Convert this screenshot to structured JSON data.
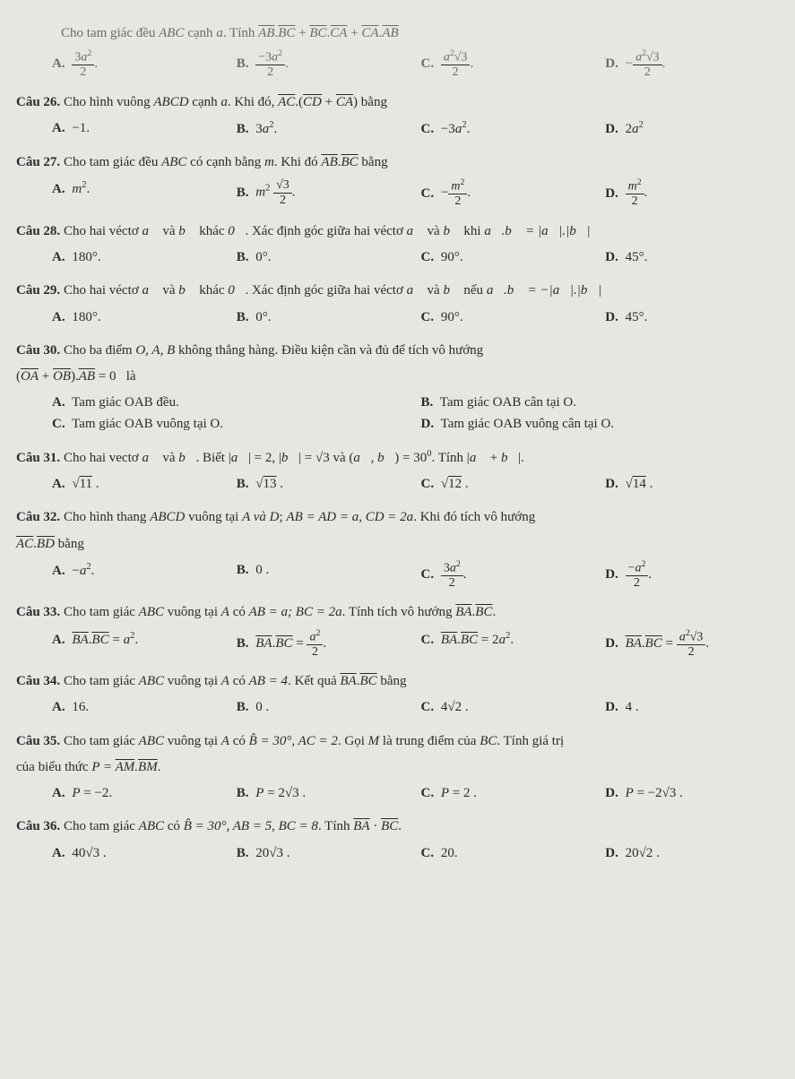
{
  "doc": {
    "background": "#e8e6e2",
    "text_color": "#2a2a2a",
    "font_family": "Times New Roman",
    "base_fontsize_pt": 15
  },
  "q25": {
    "stem_prefix": "Cho tam giác đều ",
    "shape": "ABC",
    "stem_mid": " cạnh ",
    "var": "a",
    "stem_end": ". Tính ",
    "expr": "AB·BC + BC·CA + CA·AB",
    "optA": "3a² / 2",
    "optB": "−3a² / 2",
    "optC": "a²√3 / 2",
    "optD": "− a²√3 / 2"
  },
  "q26": {
    "label": "Câu 26.",
    "stem_a": "Cho hình vuông ",
    "shape": "ABCD",
    "stem_b": " cạnh ",
    "var": "a",
    "stem_c": ". Khi đó, ",
    "expr": "AC·(CD + CA)",
    "stem_d": " bằng",
    "optA": "−1.",
    "optB": "3a².",
    "optC": "−3a².",
    "optD": "2a²"
  },
  "q27": {
    "label": "Câu 27.",
    "stem_a": "Cho tam giác đều ",
    "shape": "ABC",
    "stem_b": " có cạnh bằng ",
    "var": "m",
    "stem_c": ". Khi đó ",
    "expr": "AB·BC",
    "stem_d": " bằng",
    "optA": "m².",
    "optB": "m² √3 / 2 .",
    "optC": "− m² / 2 .",
    "optD": "m² / 2 ."
  },
  "q28": {
    "label": "Câu 28.",
    "stem_a": "Cho hai véctơ ",
    "v1": "a",
    "and": " và ",
    "v2": "b",
    "stem_b": " khác ",
    "zero": "0",
    "stem_c": ". Xác định góc giữa hai véctơ ",
    "stem_d": " khi ",
    "cond": "a·b = |a|·|b|",
    "optA": "180°.",
    "optB": "0°.",
    "optC": "90°.",
    "optD": "45°."
  },
  "q29": {
    "label": "Câu 29.",
    "stem_a": "Cho hai véctơ ",
    "v1": "a",
    "and": " và ",
    "v2": "b",
    "stem_b": " khác ",
    "zero": "0",
    "stem_c": ". Xác định góc giữa hai véctơ ",
    "stem_d": " nếu ",
    "cond": "a·b = −|a|·|b|",
    "optA": "180°.",
    "optB": "0°.",
    "optC": "90°.",
    "optD": "45°."
  },
  "q30": {
    "label": "Câu 30.",
    "stem_a": "Cho ba điểm ",
    "pts": "O, A, B",
    "stem_b": " không thẳng hàng. Điều kiện cần và đủ để tích vô hướng",
    "line2": "(OA + OB)·AB = 0  là",
    "optA": "Tam giác OAB đều.",
    "optB": "Tam giác OAB cân tại O.",
    "optC": "Tam giác OAB vuông tại O.",
    "optD": "Tam giác OAB vuông cân tại O."
  },
  "q31": {
    "label": "Câu 31.",
    "stem_a": "Cho hai vectơ ",
    "v1": "a",
    "and": " và ",
    "v2": "b",
    "stem_b": ". Biết ",
    "cond1": "|a| = 2",
    "sep": ", ",
    "cond2": "|b| = √3",
    "stem_c": " và ",
    "cond3": "(a, b) = 30°",
    "stem_d": ". Tính ",
    "ask": "|a + b|",
    "dot": ".",
    "optA": "√11 .",
    "optB": "√13 .",
    "optC": "√12 .",
    "optD": "√14 ."
  },
  "q32": {
    "label": "Câu 32.",
    "stem_a": "Cho hình thang ",
    "shape": "ABCD",
    "stem_b": " vuông tại ",
    "pts": "A và D",
    "stem_c": "; ",
    "cond": "AB = AD = a, CD = 2a",
    "stem_d": ". Khi đó tích vô hướng",
    "line2": "AC·BD bằng",
    "optA": "−a².",
    "optB": "0 .",
    "optC": "3a² / 2 .",
    "optD": "−a² / 2 ."
  },
  "q33": {
    "label": "Câu 33.",
    "stem_a": "Cho tam giác ",
    "shape": "ABC",
    "stem_b": " vuông tại ",
    "pt": "A",
    "stem_c": " có ",
    "cond": "AB = a; BC = 2a",
    "stem_d": ". Tính tích vô hướng ",
    "expr": "BA·BC",
    "dot": ".",
    "optA": "BA·BC = a².",
    "optB": "BA·BC = a² / 2 .",
    "optC": "BA·BC = 2a².",
    "optD": "BA·BC = a²√3 / 2 ."
  },
  "q34": {
    "label": "Câu 34.",
    "stem_a": "Cho tam giác ",
    "shape": "ABC",
    "stem_b": " vuông tại ",
    "pt": "A",
    "stem_c": " có ",
    "cond": "AB = 4",
    "stem_d": ". Kết quả ",
    "expr": "BA·BC",
    "stem_e": " bằng",
    "optA": "16.",
    "optB": "0 .",
    "optC": "4√2 .",
    "optD": "4 ."
  },
  "q35": {
    "label": "Câu 35.",
    "stem_a": "Cho tam giác ",
    "shape": "ABC",
    "stem_b": " vuông tại ",
    "pt": "A",
    "stem_c": " có ",
    "cond": "B̂ = 30°, AC = 2",
    "stem_d": ". Gọi ",
    "m": "M",
    "stem_e": " là trung điểm của ",
    "bc": "BC",
    "stem_f": ". Tính giá trị",
    "line2_a": "của biểu thức ",
    "line2_expr": "P = AM·BM",
    "line2_b": ".",
    "optA": "P = −2.",
    "optB": "P = 2√3 .",
    "optC": "P = 2 .",
    "optD": "P = −2√3 ."
  },
  "q36": {
    "label": "Câu 36.",
    "stem_a": "Cho tam giác ",
    "shape": "ABC",
    "stem_b": " có ",
    "cond": "B̂ = 30°, AB = 5, BC = 8",
    "stem_c": ". Tính ",
    "expr": "BA · BC",
    "dot": ".",
    "optA": "40√3 .",
    "optB": "20√3 .",
    "optC": "20.",
    "optD": "20√2 ."
  }
}
